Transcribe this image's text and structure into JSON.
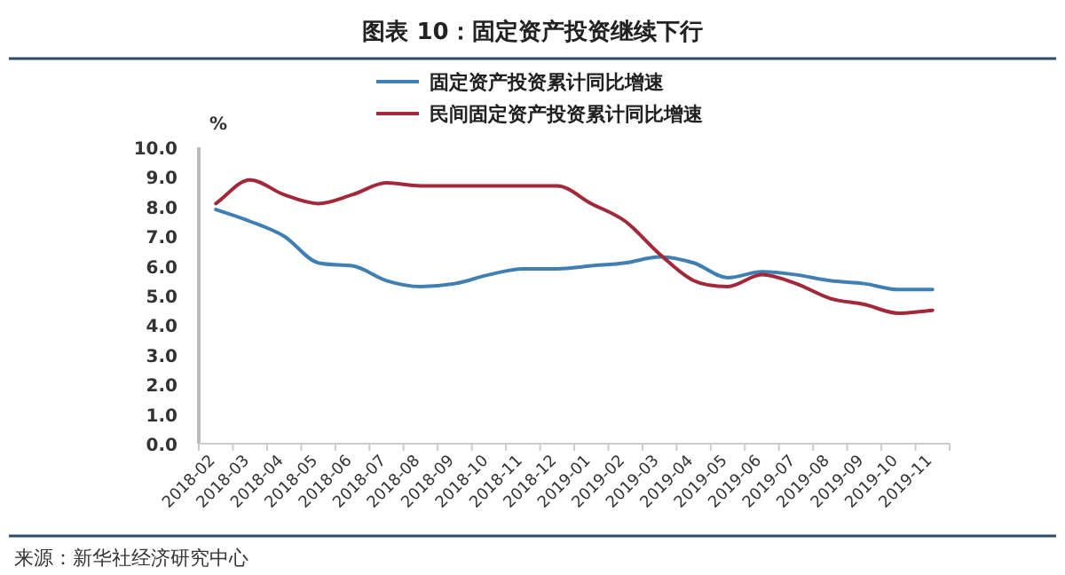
{
  "chart_data": {
    "type": "line",
    "title": "图表 10：固定资产投资继续下行",
    "ylabel": "%",
    "categories": [
      "2018-02",
      "2018-03",
      "2018-04",
      "2018-05",
      "2018-06",
      "2018-07",
      "2018-08",
      "2018-09",
      "2018-10",
      "2018-11",
      "2018-12",
      "2019-01",
      "2019-02",
      "2019-03",
      "2019-04",
      "2019-05",
      "2019-06",
      "2019-07",
      "2019-08",
      "2019-09",
      "2019-10",
      "2019-11"
    ],
    "series": [
      {
        "name": "固定资产投资累计同比增速",
        "color": "#3f7fb3",
        "values": [
          7.9,
          7.5,
          7.0,
          6.1,
          6.0,
          5.5,
          5.3,
          5.4,
          5.7,
          5.9,
          5.9,
          6.0,
          6.1,
          6.3,
          6.1,
          5.6,
          5.8,
          5.7,
          5.5,
          5.4,
          5.2,
          5.2
        ]
      },
      {
        "name": "民间固定资产投资累计同比增速",
        "color": "#a3283a",
        "values": [
          8.1,
          8.9,
          8.4,
          8.1,
          8.4,
          8.8,
          8.7,
          8.7,
          8.7,
          8.7,
          8.7,
          8.1,
          7.5,
          6.4,
          5.5,
          5.3,
          5.7,
          5.4,
          4.9,
          4.7,
          4.4,
          4.5
        ]
      }
    ],
    "ylim": [
      0,
      10
    ],
    "yticks": [
      {
        "value": 0,
        "label": "0.0"
      },
      {
        "value": 1,
        "label": "1.0"
      },
      {
        "value": 2,
        "label": "2.0"
      },
      {
        "value": 3,
        "label": "3.0"
      },
      {
        "value": 4,
        "label": "4.0"
      },
      {
        "value": 5,
        "label": "5.0"
      },
      {
        "value": 6,
        "label": "6.0"
      },
      {
        "value": 7,
        "label": "7.0"
      },
      {
        "value": 8,
        "label": "8.0"
      },
      {
        "value": 9,
        "label": "9.0"
      },
      {
        "value": 10,
        "label": "10.0"
      }
    ],
    "grid": false,
    "legend": "top",
    "marker": "none",
    "line_style": "solid",
    "annotations": [
      "来源：新华社经济研究中心"
    ]
  }
}
